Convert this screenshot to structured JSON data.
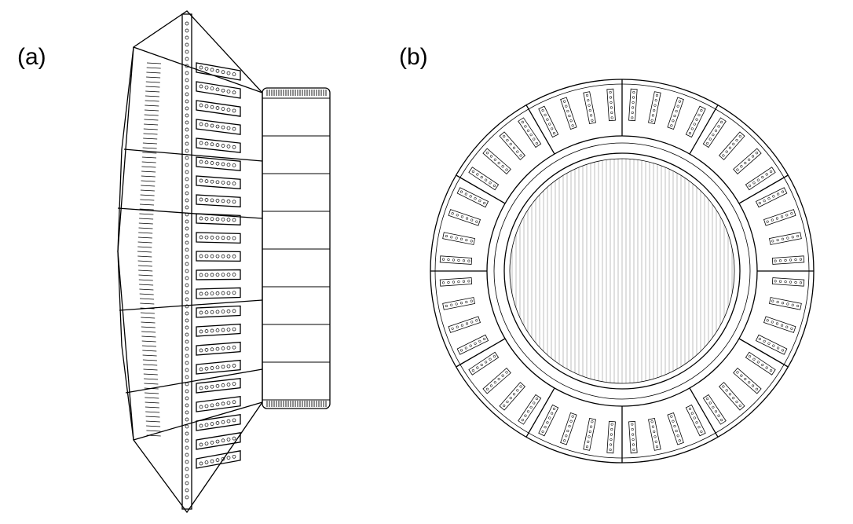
{
  "panels": [
    {
      "label": "(a)",
      "view": "side"
    },
    {
      "label": "(b)",
      "view": "top"
    }
  ],
  "colors": {
    "ink": "#000000",
    "paper": "#ffffff"
  }
}
